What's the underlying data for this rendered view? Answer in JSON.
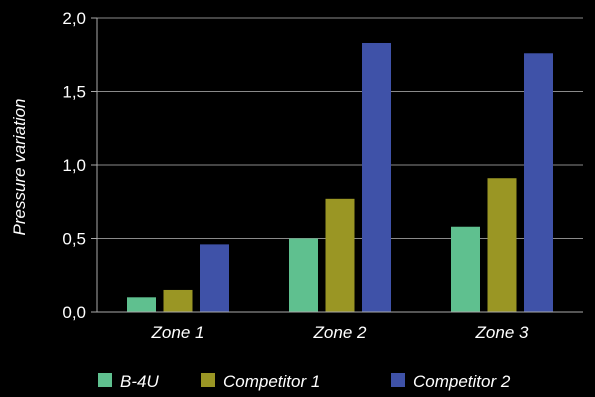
{
  "chart_data": {
    "type": "bar",
    "categories": [
      "Zone 1",
      "Zone 2",
      "Zone 3"
    ],
    "series": [
      {
        "name": "B-4U",
        "color": "#5fc08f",
        "values": [
          0.1,
          0.5,
          0.58
        ]
      },
      {
        "name": "Competitor 1",
        "color": "#9a9624",
        "values": [
          0.15,
          0.77,
          0.91
        ]
      },
      {
        "name": "Competitor 2",
        "color": "#3f52a8",
        "values": [
          0.46,
          1.83,
          1.76
        ]
      }
    ],
    "title": "",
    "xlabel": "",
    "ylabel": "Pressure variation",
    "ylim": [
      0,
      2.0
    ],
    "yticks": [
      0,
      0.5,
      1.0,
      1.5,
      2.0
    ],
    "ytick_labels": [
      "0,0",
      "0,5",
      "1,0",
      "1,5",
      "2,0"
    ],
    "grid": true,
    "legend_position": "bottom"
  }
}
